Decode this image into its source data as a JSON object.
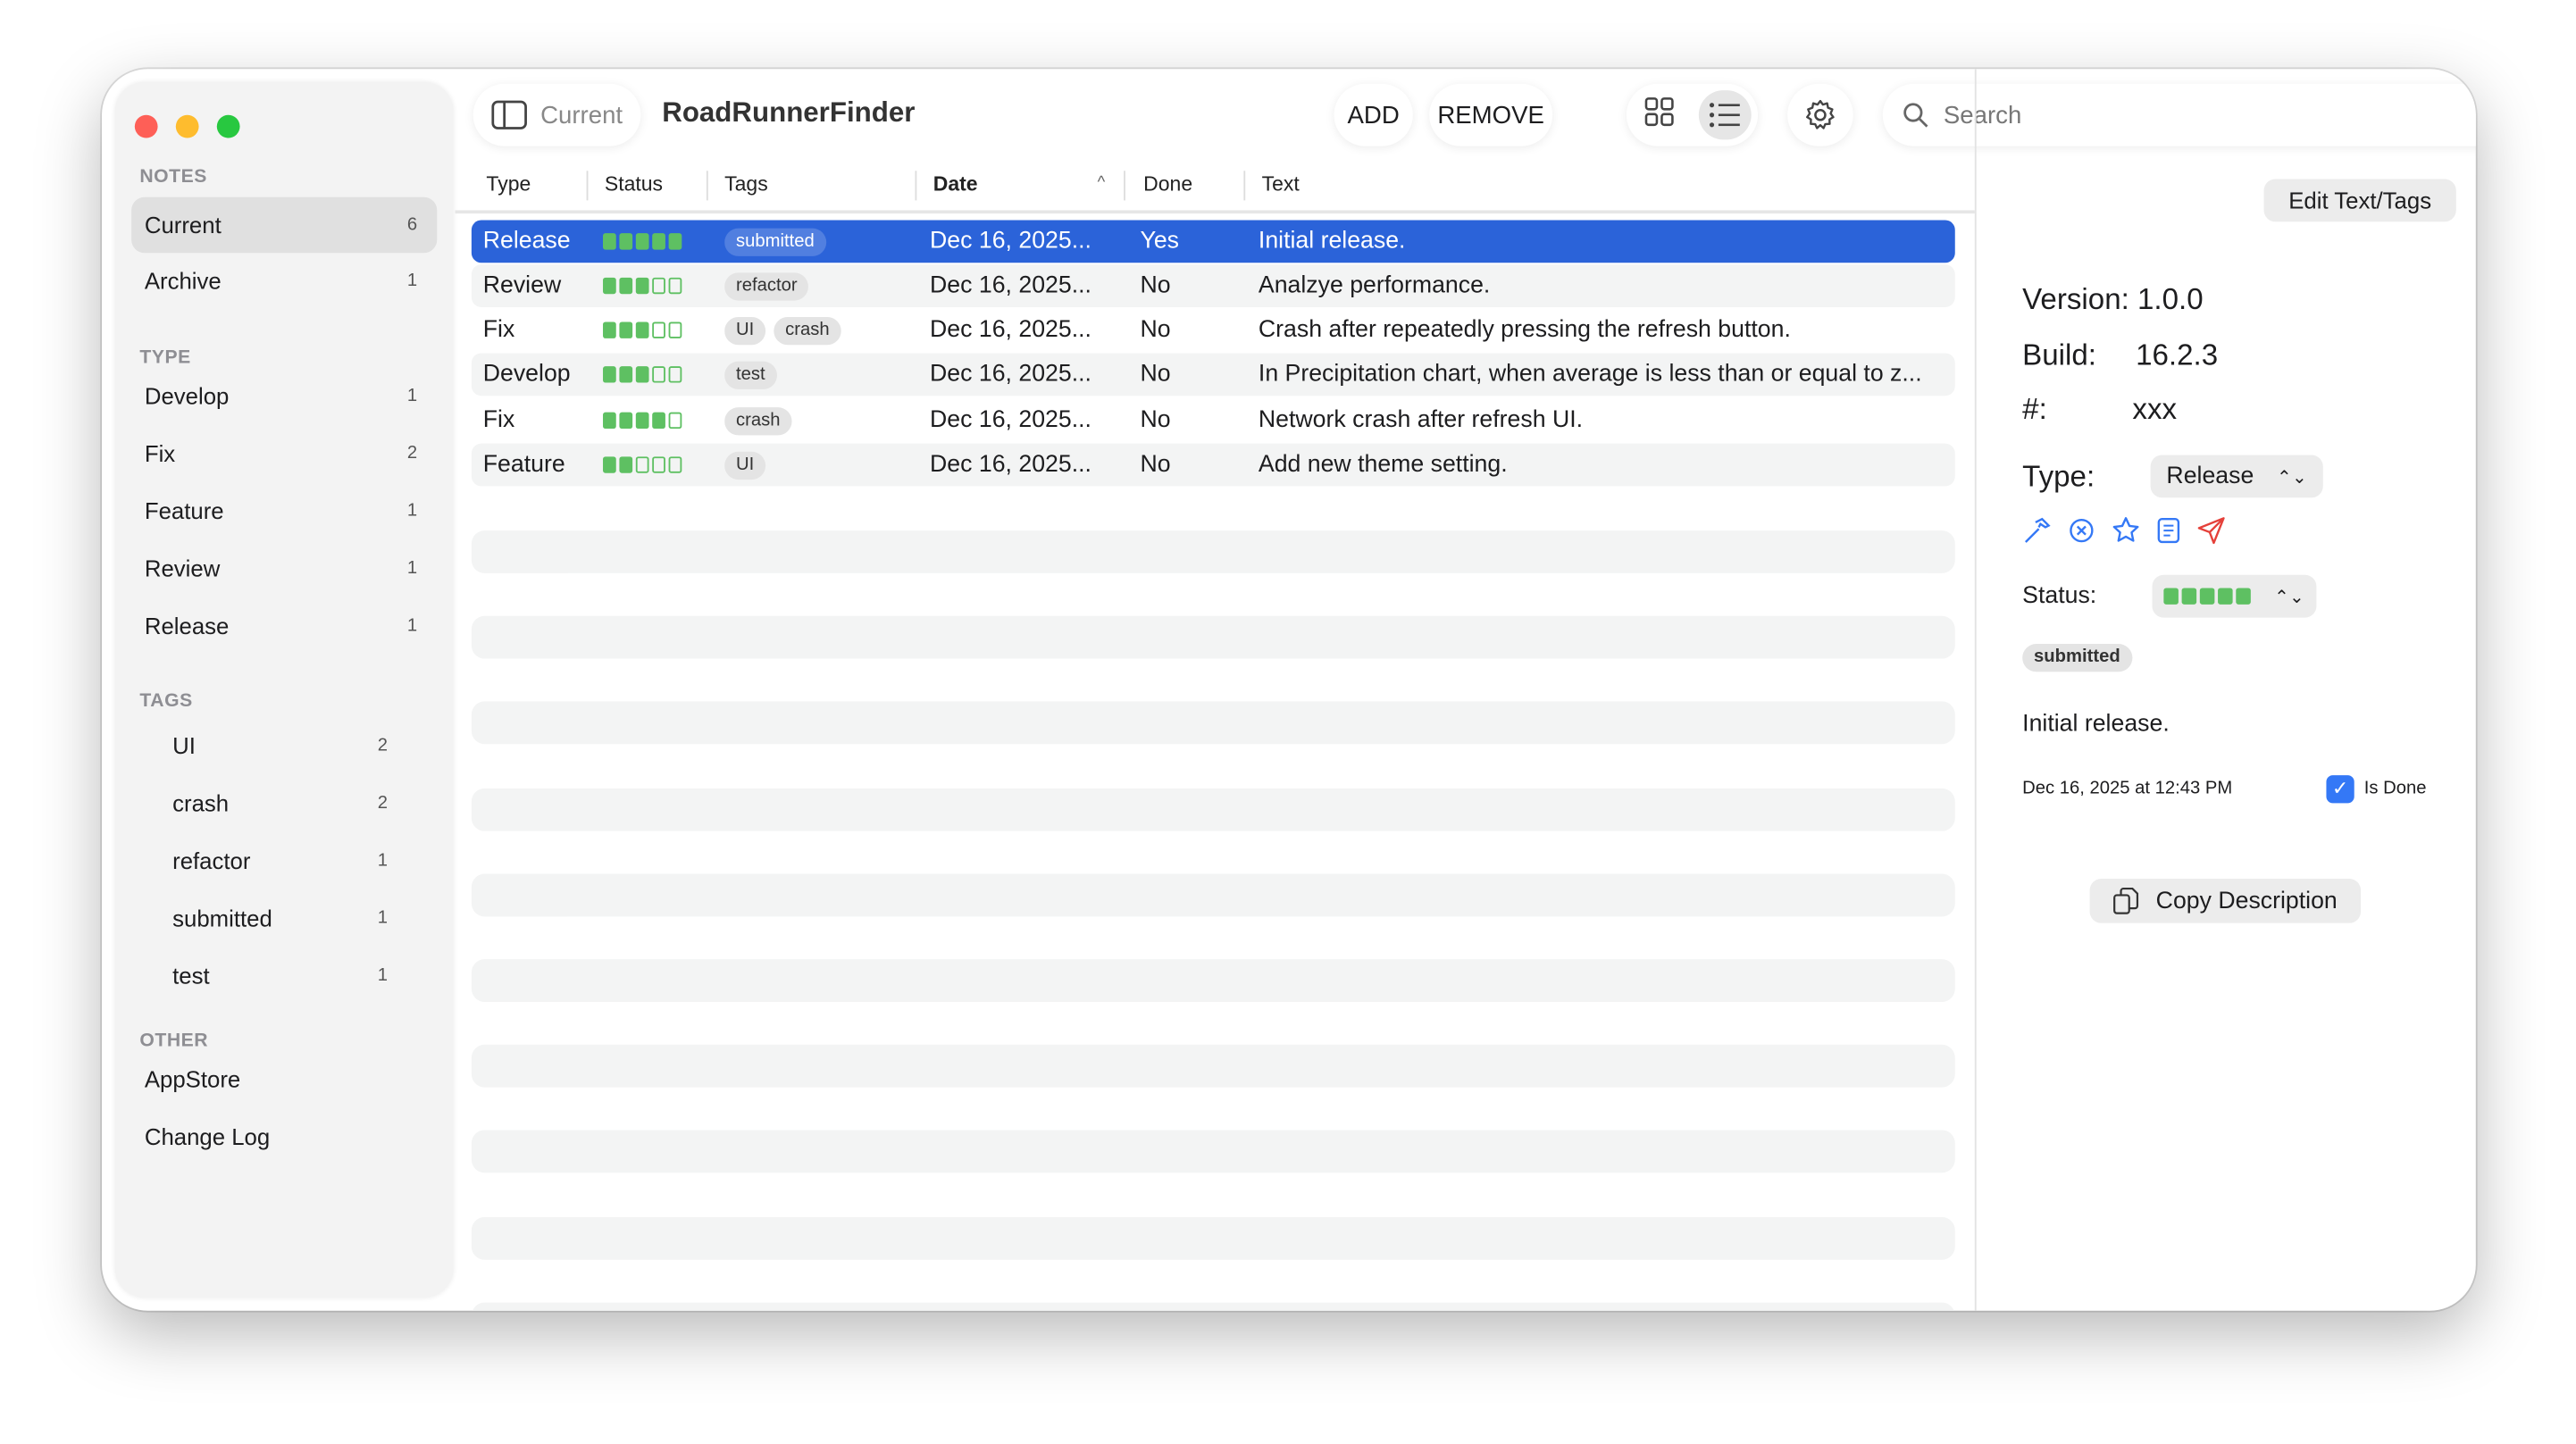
{
  "window": {
    "traffic_lights": {
      "close": "#fe5f57",
      "minimize": "#febc2e",
      "zoom": "#28c840"
    }
  },
  "sidebar": {
    "notes_header": "NOTES",
    "notes": [
      {
        "label": "Current",
        "count": "6",
        "selected": true
      },
      {
        "label": "Archive",
        "count": "1"
      }
    ],
    "type_header": "TYPE",
    "types": [
      {
        "label": "Develop",
        "count": "1"
      },
      {
        "label": "Fix",
        "count": "2"
      },
      {
        "label": "Feature",
        "count": "1"
      },
      {
        "label": "Review",
        "count": "1"
      },
      {
        "label": "Release",
        "count": "1"
      }
    ],
    "tags_header": "TAGS",
    "tags": [
      {
        "label": "UI",
        "count": "2"
      },
      {
        "label": "crash",
        "count": "2"
      },
      {
        "label": "refactor",
        "count": "1"
      },
      {
        "label": "submitted",
        "count": "1"
      },
      {
        "label": "test",
        "count": "1"
      }
    ],
    "other_header": "OTHER",
    "other": [
      {
        "label": "AppStore"
      },
      {
        "label": "Change Log"
      }
    ]
  },
  "toolbar": {
    "sidebar_toggle_label": "Current",
    "title": "RoadRunnerFinder",
    "add": "ADD",
    "remove": "REMOVE",
    "search_placeholder": "Search"
  },
  "table": {
    "columns": [
      "Type",
      "Status",
      "Tags",
      "Date",
      "Done",
      "Text"
    ],
    "sort_column": "Date",
    "sort_direction": "ascending",
    "rows": [
      {
        "type": "Release",
        "status": 5,
        "tags": [
          "submitted"
        ],
        "date": "Dec 16, 2025...",
        "done": "Yes",
        "text": "Initial release.",
        "selected": true
      },
      {
        "type": "Review",
        "status": 3,
        "tags": [
          "refactor"
        ],
        "date": "Dec 16, 2025...",
        "done": "No",
        "text": "Analzye performance."
      },
      {
        "type": "Fix",
        "status": 3,
        "tags": [
          "UI",
          "crash"
        ],
        "date": "Dec 16, 2025...",
        "done": "No",
        "text": "Crash after repeatedly pressing the refresh button."
      },
      {
        "type": "Develop",
        "status": 3,
        "tags": [
          "test"
        ],
        "date": "Dec 16, 2025...",
        "done": "No",
        "text": "In Precipitation chart, when average is less than or equal to z..."
      },
      {
        "type": "Fix",
        "status": 4,
        "tags": [
          "crash"
        ],
        "date": "Dec 16, 2025...",
        "done": "No",
        "text": "Network crash after refresh UI."
      },
      {
        "type": "Feature",
        "status": 2,
        "tags": [
          "UI"
        ],
        "date": "Dec 16, 2025...",
        "done": "No",
        "text": "Add new theme setting."
      }
    ]
  },
  "detail": {
    "edit_button": "Edit Text/Tags",
    "version": "Version: 1.0.0",
    "build_label": "Build:",
    "build_value": "16.2.3",
    "number_label": "#:",
    "number_value": "xxx",
    "type_label": "Type:",
    "type_value": "Release",
    "status_label": "Status:",
    "status_value": 5,
    "tag": "submitted",
    "text": "Initial release.",
    "date": "Dec 16, 2025 at 12:43 PM",
    "is_done_label": "Is Done",
    "is_done": true,
    "copy_button": "Copy Description"
  },
  "colors": {
    "selection": "#2b63d9",
    "status_green": "#5ec062",
    "accent": "#3478f6"
  }
}
